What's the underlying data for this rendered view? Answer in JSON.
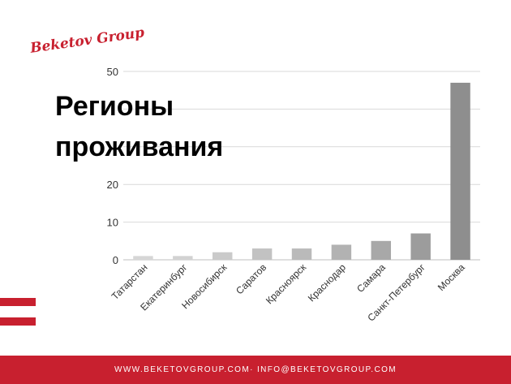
{
  "brand": {
    "logo_text": "Beketov Group",
    "accent_color": "#c8202f"
  },
  "slide": {
    "title": "Регионы проживания"
  },
  "footer": {
    "text": "WWW.BEKETOVGROUP.COM· INFO@BEKETOVGROUP.COM"
  },
  "chart_data": {
    "type": "bar",
    "title": "",
    "xlabel": "",
    "ylabel": "",
    "ylim": [
      0,
      50
    ],
    "yticks": [
      0,
      10,
      20,
      30,
      40,
      50
    ],
    "ytick_labels": [
      "0",
      "10",
      "20",
      "",
      "",
      "50"
    ],
    "grid": true,
    "categories": [
      "Татарстан",
      "Екатеринбург",
      "Новосибирск",
      "Саратов",
      "Красноярск",
      "Краснодар",
      "Самара",
      "Санкт-Петербург",
      "Москва"
    ],
    "values": [
      1,
      1,
      2,
      3,
      3,
      4,
      5,
      7,
      47
    ],
    "bar_colors": [
      "#d6d6d6",
      "#d2d2d2",
      "#cacaca",
      "#c2c2c2",
      "#bababa",
      "#b2b2b2",
      "#a8a8a8",
      "#9c9c9c",
      "#8e8e8e"
    ]
  }
}
